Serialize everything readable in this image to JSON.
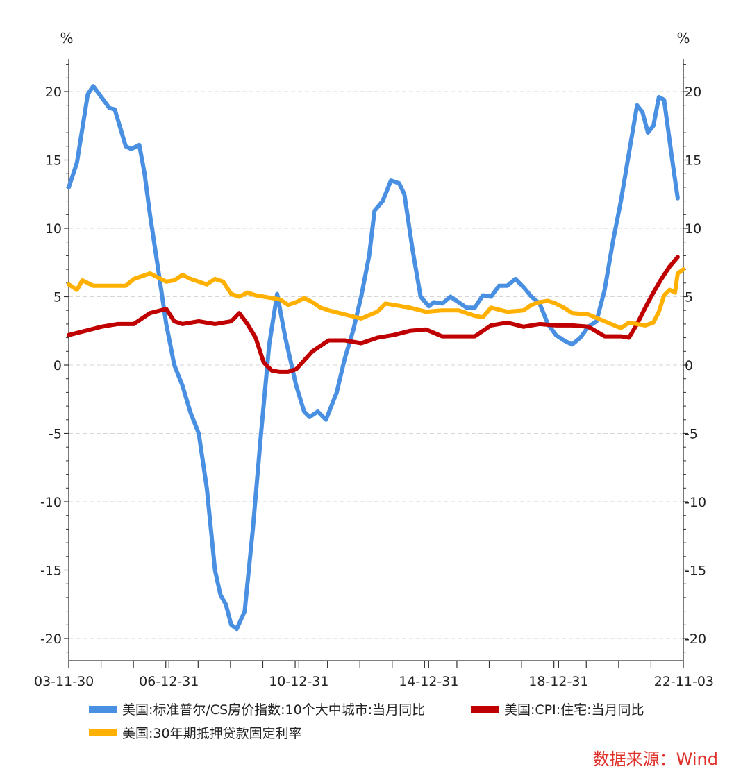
{
  "chart_data": {
    "type": "line",
    "y_unit_left": "%",
    "y_unit_right": "%",
    "ylim": [
      -21,
      22
    ],
    "yticks": [
      20,
      15,
      10,
      5,
      0,
      -5,
      -10,
      -15,
      -20
    ],
    "ytick_labels": [
      "20",
      "15",
      "10",
      "5",
      "0",
      "-5",
      "-10",
      "-15",
      "-20"
    ],
    "xlim": [
      "2003-11-30",
      "2022-11-03"
    ],
    "xticks": [
      {
        "date": "2003-11-30",
        "label": "03-11-30"
      },
      {
        "date": "2006-12-31",
        "label": "06-12-31"
      },
      {
        "date": "2010-12-31",
        "label": "10-12-31"
      },
      {
        "date": "2014-12-31",
        "label": "14-12-31"
      },
      {
        "date": "2018-12-31",
        "label": "18-12-31"
      },
      {
        "date": "2022-11-03",
        "label": "22-11-03"
      }
    ],
    "grid": true,
    "legend_position": "bottom",
    "series": [
      {
        "name": "美国:标准普尔/CS房价指数:10个大中城市:当月同比",
        "color": "#4A90E2",
        "points": [
          [
            "2003-11-30",
            13.0
          ],
          [
            "2004-03-01",
            14.8
          ],
          [
            "2004-07-01",
            19.8
          ],
          [
            "2004-09-01",
            20.4
          ],
          [
            "2004-12-01",
            19.6
          ],
          [
            "2005-03-01",
            18.8
          ],
          [
            "2005-05-01",
            18.7
          ],
          [
            "2005-09-01",
            16.0
          ],
          [
            "2005-11-01",
            15.8
          ],
          [
            "2006-02-01",
            16.1
          ],
          [
            "2006-04-01",
            14.0
          ],
          [
            "2006-06-01",
            11.0
          ],
          [
            "2006-09-01",
            7.0
          ],
          [
            "2006-12-01",
            3.0
          ],
          [
            "2007-03-01",
            0.0
          ],
          [
            "2007-06-01",
            -1.5
          ],
          [
            "2007-09-01",
            -3.5
          ],
          [
            "2007-12-01",
            -5.0
          ],
          [
            "2008-03-01",
            -9.0
          ],
          [
            "2008-06-01",
            -15.0
          ],
          [
            "2008-08-01",
            -16.8
          ],
          [
            "2008-10-01",
            -17.5
          ],
          [
            "2008-12-01",
            -19.0
          ],
          [
            "2009-02-01",
            -19.3
          ],
          [
            "2009-05-01",
            -18.0
          ],
          [
            "2009-08-01",
            -12.0
          ],
          [
            "2009-11-01",
            -5.0
          ],
          [
            "2010-02-01",
            1.5
          ],
          [
            "2010-05-01",
            5.2
          ],
          [
            "2010-08-01",
            2.0
          ],
          [
            "2010-12-01",
            -1.5
          ],
          [
            "2011-03-01",
            -3.4
          ],
          [
            "2011-05-01",
            -3.8
          ],
          [
            "2011-08-01",
            -3.4
          ],
          [
            "2011-11-01",
            -4.0
          ],
          [
            "2012-03-01",
            -2.0
          ],
          [
            "2012-06-01",
            0.5
          ],
          [
            "2012-09-01",
            2.5
          ],
          [
            "2012-12-01",
            5.0
          ],
          [
            "2013-03-01",
            8.0
          ],
          [
            "2013-05-01",
            11.3
          ],
          [
            "2013-08-01",
            12.0
          ],
          [
            "2013-11-01",
            13.5
          ],
          [
            "2014-02-01",
            13.3
          ],
          [
            "2014-04-01",
            12.5
          ],
          [
            "2014-07-01",
            8.5
          ],
          [
            "2014-10-01",
            5.0
          ],
          [
            "2015-01-01",
            4.3
          ],
          [
            "2015-03-01",
            4.6
          ],
          [
            "2015-06-01",
            4.5
          ],
          [
            "2015-09-01",
            5.0
          ],
          [
            "2015-12-01",
            4.6
          ],
          [
            "2016-03-01",
            4.2
          ],
          [
            "2016-06-01",
            4.2
          ],
          [
            "2016-09-01",
            5.1
          ],
          [
            "2016-12-01",
            5.0
          ],
          [
            "2017-03-01",
            5.8
          ],
          [
            "2017-06-01",
            5.8
          ],
          [
            "2017-09-01",
            6.3
          ],
          [
            "2017-12-01",
            5.7
          ],
          [
            "2018-03-01",
            5.0
          ],
          [
            "2018-06-01",
            4.5
          ],
          [
            "2018-09-01",
            3.0
          ],
          [
            "2018-12-01",
            2.2
          ],
          [
            "2019-03-01",
            1.8
          ],
          [
            "2019-06-01",
            1.5
          ],
          [
            "2019-09-01",
            2.0
          ],
          [
            "2019-12-01",
            2.8
          ],
          [
            "2020-03-01",
            3.2
          ],
          [
            "2020-06-01",
            5.5
          ],
          [
            "2020-09-01",
            9.0
          ],
          [
            "2020-12-01",
            12.0
          ],
          [
            "2021-03-01",
            15.5
          ],
          [
            "2021-06-01",
            19.0
          ],
          [
            "2021-08-01",
            18.5
          ],
          [
            "2021-10-01",
            17.0
          ],
          [
            "2021-12-01",
            17.5
          ],
          [
            "2022-02-01",
            19.6
          ],
          [
            "2022-04-01",
            19.4
          ],
          [
            "2022-07-01",
            15.0
          ],
          [
            "2022-09-01",
            12.2
          ]
        ]
      },
      {
        "name": "美国:CPI:住宅:当月同比",
        "color": "#C00000",
        "points": [
          [
            "2003-11-30",
            2.2
          ],
          [
            "2004-06-01",
            2.5
          ],
          [
            "2004-12-01",
            2.8
          ],
          [
            "2005-06-01",
            3.0
          ],
          [
            "2005-12-01",
            3.0
          ],
          [
            "2006-06-01",
            3.8
          ],
          [
            "2006-12-01",
            4.1
          ],
          [
            "2007-03-01",
            3.2
          ],
          [
            "2007-06-01",
            3.0
          ],
          [
            "2007-12-01",
            3.2
          ],
          [
            "2008-06-01",
            3.0
          ],
          [
            "2008-12-01",
            3.2
          ],
          [
            "2009-03-01",
            3.8
          ],
          [
            "2009-06-01",
            3.0
          ],
          [
            "2009-09-01",
            2.0
          ],
          [
            "2009-12-01",
            0.2
          ],
          [
            "2010-03-01",
            -0.4
          ],
          [
            "2010-06-01",
            -0.5
          ],
          [
            "2010-09-01",
            -0.5
          ],
          [
            "2010-12-01",
            -0.3
          ],
          [
            "2011-06-01",
            1.0
          ],
          [
            "2011-12-01",
            1.8
          ],
          [
            "2012-06-01",
            1.8
          ],
          [
            "2012-12-01",
            1.6
          ],
          [
            "2013-06-01",
            2.0
          ],
          [
            "2013-12-01",
            2.2
          ],
          [
            "2014-06-01",
            2.5
          ],
          [
            "2014-12-01",
            2.6
          ],
          [
            "2015-06-01",
            2.1
          ],
          [
            "2015-12-01",
            2.1
          ],
          [
            "2016-06-01",
            2.1
          ],
          [
            "2016-12-01",
            2.9
          ],
          [
            "2017-06-01",
            3.1
          ],
          [
            "2017-12-01",
            2.8
          ],
          [
            "2018-06-01",
            3.0
          ],
          [
            "2018-12-01",
            2.9
          ],
          [
            "2019-06-01",
            2.9
          ],
          [
            "2019-12-01",
            2.8
          ],
          [
            "2020-06-01",
            2.1
          ],
          [
            "2020-12-01",
            2.1
          ],
          [
            "2021-03-01",
            2.0
          ],
          [
            "2021-06-01",
            3.0
          ],
          [
            "2021-09-01",
            4.2
          ],
          [
            "2021-12-01",
            5.3
          ],
          [
            "2022-03-01",
            6.3
          ],
          [
            "2022-06-01",
            7.2
          ],
          [
            "2022-09-01",
            7.9
          ]
        ]
      },
      {
        "name": "美国:30年期抵押贷款固定利率",
        "color": "#FFB000",
        "points": [
          [
            "2003-11-30",
            5.9
          ],
          [
            "2004-03-01",
            5.5
          ],
          [
            "2004-05-01",
            6.2
          ],
          [
            "2004-09-01",
            5.8
          ],
          [
            "2005-03-01",
            5.8
          ],
          [
            "2005-09-01",
            5.8
          ],
          [
            "2005-12-01",
            6.3
          ],
          [
            "2006-06-01",
            6.7
          ],
          [
            "2006-12-01",
            6.1
          ],
          [
            "2007-03-01",
            6.2
          ],
          [
            "2007-06-01",
            6.6
          ],
          [
            "2007-09-01",
            6.3
          ],
          [
            "2007-12-01",
            6.1
          ],
          [
            "2008-03-01",
            5.9
          ],
          [
            "2008-06-01",
            6.3
          ],
          [
            "2008-09-01",
            6.1
          ],
          [
            "2008-12-01",
            5.2
          ],
          [
            "2009-03-01",
            5.0
          ],
          [
            "2009-06-01",
            5.3
          ],
          [
            "2009-09-01",
            5.1
          ],
          [
            "2009-12-01",
            5.0
          ],
          [
            "2010-06-01",
            4.8
          ],
          [
            "2010-09-01",
            4.4
          ],
          [
            "2010-12-01",
            4.6
          ],
          [
            "2011-03-01",
            4.9
          ],
          [
            "2011-06-01",
            4.6
          ],
          [
            "2011-09-01",
            4.2
          ],
          [
            "2011-12-01",
            4.0
          ],
          [
            "2012-06-01",
            3.7
          ],
          [
            "2012-12-01",
            3.4
          ],
          [
            "2013-06-01",
            3.9
          ],
          [
            "2013-09-01",
            4.5
          ],
          [
            "2013-12-01",
            4.4
          ],
          [
            "2014-06-01",
            4.2
          ],
          [
            "2014-12-01",
            3.9
          ],
          [
            "2015-06-01",
            4.0
          ],
          [
            "2015-12-01",
            4.0
          ],
          [
            "2016-06-01",
            3.6
          ],
          [
            "2016-09-01",
            3.5
          ],
          [
            "2016-12-01",
            4.2
          ],
          [
            "2017-06-01",
            3.9
          ],
          [
            "2017-12-01",
            4.0
          ],
          [
            "2018-03-01",
            4.4
          ],
          [
            "2018-06-01",
            4.6
          ],
          [
            "2018-09-01",
            4.7
          ],
          [
            "2018-12-01",
            4.5
          ],
          [
            "2019-03-01",
            4.2
          ],
          [
            "2019-06-01",
            3.8
          ],
          [
            "2019-12-01",
            3.7
          ],
          [
            "2020-06-01",
            3.2
          ],
          [
            "2020-12-01",
            2.7
          ],
          [
            "2021-03-01",
            3.1
          ],
          [
            "2021-06-01",
            3.0
          ],
          [
            "2021-09-01",
            2.9
          ],
          [
            "2021-12-01",
            3.1
          ],
          [
            "2022-02-01",
            3.9
          ],
          [
            "2022-04-01",
            5.1
          ],
          [
            "2022-06-01",
            5.5
          ],
          [
            "2022-08-01",
            5.3
          ],
          [
            "2022-09-01",
            6.7
          ],
          [
            "2022-11-03",
            7.0
          ]
        ]
      }
    ]
  },
  "source_text": "数据来源：Wind",
  "source_color": "#E0302A"
}
